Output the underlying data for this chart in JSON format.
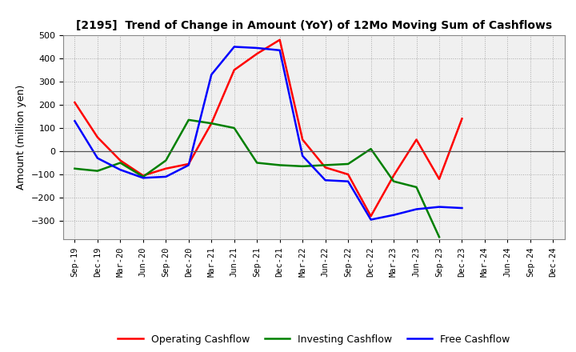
{
  "title": "[2195]  Trend of Change in Amount (YoY) of 12Mo Moving Sum of Cashflows",
  "ylabel": "Amount (million yen)",
  "x_labels": [
    "Sep-19",
    "Dec-19",
    "Mar-20",
    "Jun-20",
    "Sep-20",
    "Dec-20",
    "Mar-21",
    "Jun-21",
    "Sep-21",
    "Dec-21",
    "Mar-22",
    "Jun-22",
    "Sep-22",
    "Dec-22",
    "Mar-23",
    "Jun-23",
    "Sep-23",
    "Dec-23",
    "Mar-24",
    "Jun-24",
    "Sep-24",
    "Dec-24"
  ],
  "operating": [
    210,
    60,
    -40,
    -105,
    -75,
    -55,
    120,
    350,
    420,
    480,
    50,
    -70,
    -100,
    -280,
    -105,
    50,
    -120,
    140,
    null,
    null,
    null,
    null
  ],
  "investing": [
    -75,
    -85,
    -50,
    -110,
    -40,
    135,
    120,
    100,
    -50,
    -60,
    -65,
    -60,
    -55,
    10,
    -130,
    -155,
    -370,
    null,
    null,
    null,
    null,
    null
  ],
  "free": [
    130,
    -30,
    -80,
    -115,
    -110,
    -60,
    330,
    450,
    445,
    435,
    -20,
    -125,
    -130,
    -295,
    -275,
    -250,
    -240,
    -245,
    null,
    null,
    null,
    null
  ],
  "operating_color": "#ff0000",
  "investing_color": "#008000",
  "free_color": "#0000ff",
  "ylim": [
    -380,
    500
  ],
  "yticks": [
    -300,
    -200,
    -100,
    0,
    100,
    200,
    300,
    400,
    500
  ],
  "plot_bg": "#f0f0f0",
  "background_color": "#ffffff",
  "grid_color": "#aaaaaa"
}
